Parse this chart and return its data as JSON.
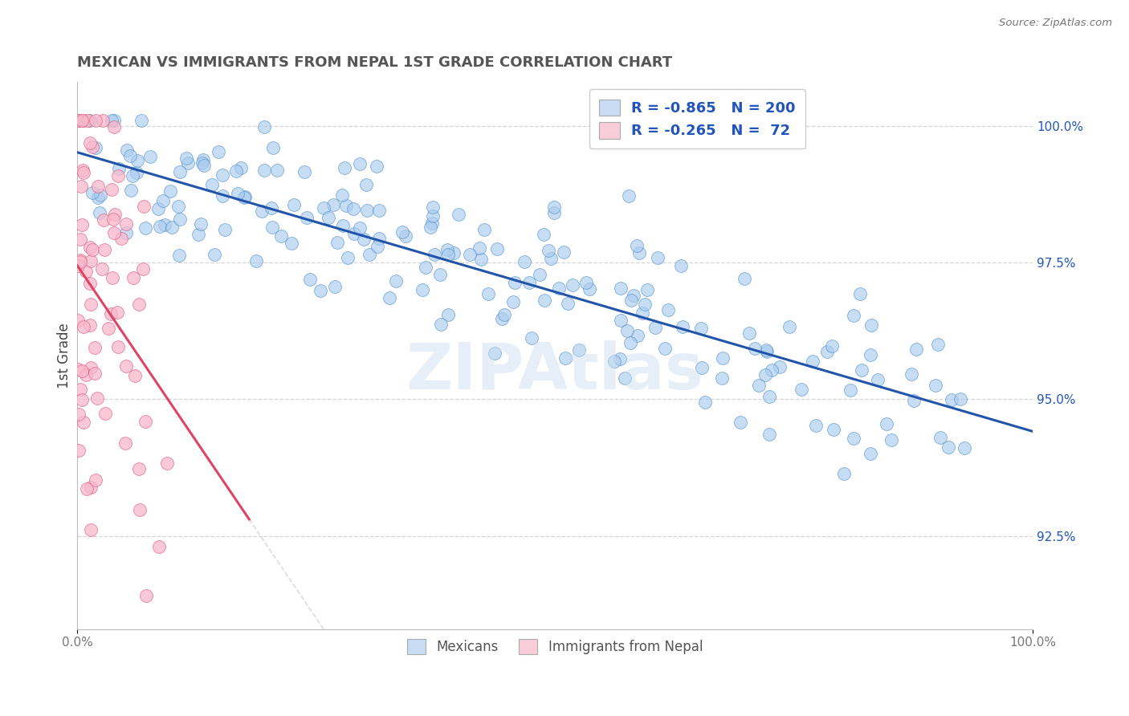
{
  "title": "MEXICAN VS IMMIGRANTS FROM NEPAL 1ST GRADE CORRELATION CHART",
  "source": "Source: ZipAtlas.com",
  "ylabel": "1st Grade",
  "blue_R": -0.865,
  "blue_N": 200,
  "pink_R": -0.265,
  "pink_N": 72,
  "blue_color": "#aaccee",
  "blue_edge_color": "#4488cc",
  "blue_line_color": "#2255aa",
  "pink_color": "#f8b8cc",
  "pink_edge_color": "#e06080",
  "pink_line_color": "#dd4466",
  "legend_blue_face": "#c8ddf4",
  "legend_pink_face": "#f8ccd8",
  "watermark": "ZIPAtlas",
  "right_ytick_labels": [
    "100.0%",
    "97.5%",
    "95.0%",
    "92.5%"
  ],
  "right_ytick_values": [
    1.0,
    0.975,
    0.95,
    0.925
  ],
  "xlim": [
    0.0,
    1.0
  ],
  "ylim": [
    0.908,
    1.008
  ],
  "background": "#ffffff",
  "grid_color": "#cccccc",
  "title_color": "#555555",
  "legend_text_color": "#2255bb",
  "title_fontsize": 13,
  "axis_label_color": "#777777"
}
